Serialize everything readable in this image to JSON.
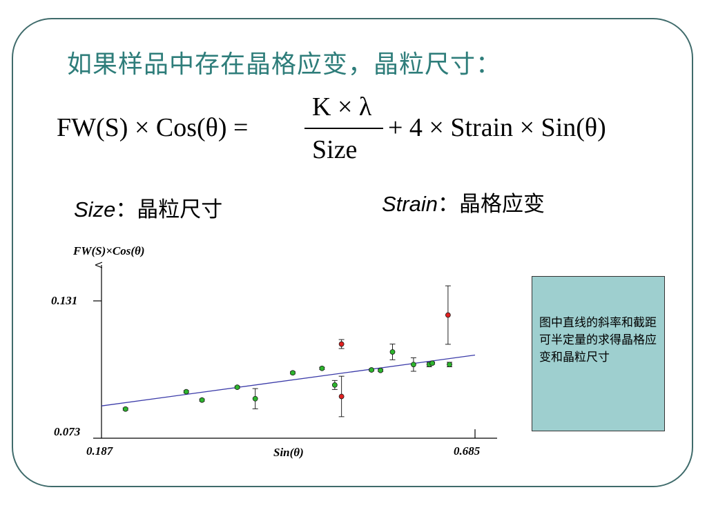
{
  "title": "如果样品中存在晶格应变，晶粒尺寸：",
  "formula": {
    "lhs": "FW(S) × Cos(θ) =",
    "numerator": "K × λ",
    "denominator": "Size",
    "rhs": "+ 4 × Strain × Sin(θ)"
  },
  "definitions": [
    {
      "term": "Size",
      "description": "：晶粒尺寸"
    },
    {
      "term": "Strain",
      "description": "：晶格应变"
    }
  ],
  "chart_data": {
    "type": "scatter",
    "xlabel": "Sin(θ)",
    "ylabel": "FW(S)×Cos(θ)",
    "x_ticks": [
      "0.187",
      "0.685"
    ],
    "y_ticks": [
      "0.131",
      "0.073"
    ],
    "xlim": [
      0.187,
      0.685
    ],
    "ylim": [
      0.073,
      0.131
    ],
    "points": [
      {
        "x": 0.219,
        "y": 0.0829,
        "err": 0.0005,
        "color": "#2db52d"
      },
      {
        "x": 0.3,
        "y": 0.0906,
        "err": 0.0005,
        "color": "#2db52d"
      },
      {
        "x": 0.321,
        "y": 0.0869,
        "err": 0.0005,
        "color": "#2db52d"
      },
      {
        "x": 0.368,
        "y": 0.0926,
        "err": 0.0005,
        "color": "#2db52d"
      },
      {
        "x": 0.392,
        "y": 0.0875,
        "err": 0.0045,
        "color": "#2db52d"
      },
      {
        "x": 0.442,
        "y": 0.099,
        "err": 0.0005,
        "color": "#2db52d"
      },
      {
        "x": 0.481,
        "y": 0.101,
        "err": 0.0005,
        "color": "#2db52d"
      },
      {
        "x": 0.498,
        "y": 0.0936,
        "err": 0.002,
        "color": "#2db52d"
      },
      {
        "x": 0.507,
        "y": 0.1118,
        "err": 0.002,
        "color": "#e02020"
      },
      {
        "x": 0.507,
        "y": 0.0885,
        "err": 0.009,
        "color": "#e02020"
      },
      {
        "x": 0.547,
        "y": 0.1003,
        "err": 0.0005,
        "color": "#2db52d"
      },
      {
        "x": 0.559,
        "y": 0.1001,
        "err": 0.0005,
        "color": "#2db52d"
      },
      {
        "x": 0.575,
        "y": 0.1083,
        "err": 0.0035,
        "color": "#2db52d"
      },
      {
        "x": 0.603,
        "y": 0.1027,
        "err": 0.003,
        "color": "#2db52d"
      },
      {
        "x": 0.624,
        "y": 0.1027,
        "err": 0.001,
        "color": "#2db52d"
      },
      {
        "x": 0.628,
        "y": 0.1033,
        "err": 0.0005,
        "color": "#2db52d"
      },
      {
        "x": 0.649,
        "y": 0.1247,
        "err": 0.013,
        "color": "#e02020"
      },
      {
        "x": 0.651,
        "y": 0.1027,
        "err": 0.001,
        "color": "#2db52d"
      }
    ],
    "fit_line": {
      "x": [
        0.187,
        0.685
      ],
      "y": [
        0.0843,
        0.1069
      ],
      "color": "#3a3aa8"
    },
    "grid": false
  },
  "note": "图中直线的斜率和截距可半定量的求得晶格应变和晶粒尺寸"
}
